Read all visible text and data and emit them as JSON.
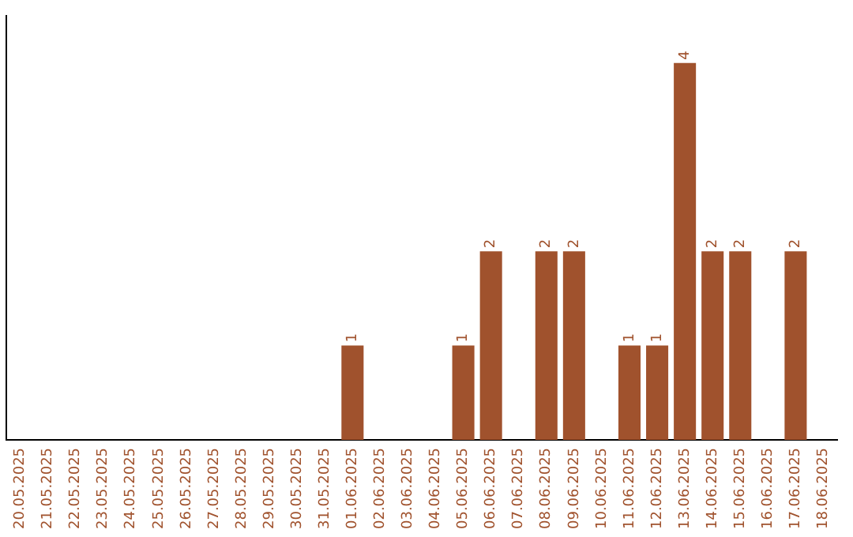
{
  "chart_data": {
    "type": "bar",
    "categories": [
      "20.05.2025",
      "21.05.2025",
      "22.05.2025",
      "23.05.2025",
      "24.05.2025",
      "25.05.2025",
      "26.05.2025",
      "27.05.2025",
      "28.05.2025",
      "29.05.2025",
      "30.05.2025",
      "31.05.2025",
      "01.06.2025",
      "02.06.2025",
      "03.06.2025",
      "04.06.2025",
      "05.06.2025",
      "06.06.2025",
      "07.06.2025",
      "08.06.2025",
      "09.06.2025",
      "10.06.2025",
      "11.06.2025",
      "12.06.2025",
      "13.06.2025",
      "14.06.2025",
      "15.06.2025",
      "16.06.2025",
      "17.06.2025",
      "18.06.2025"
    ],
    "values": [
      null,
      null,
      null,
      null,
      null,
      null,
      null,
      null,
      null,
      null,
      null,
      null,
      1,
      null,
      null,
      null,
      1,
      2,
      null,
      2,
      2,
      null,
      1,
      1,
      4,
      2,
      2,
      null,
      2,
      null
    ],
    "data_labels": true,
    "color": "#a0522d",
    "grid": false,
    "legend": false,
    "tick_labels": "x"
  }
}
